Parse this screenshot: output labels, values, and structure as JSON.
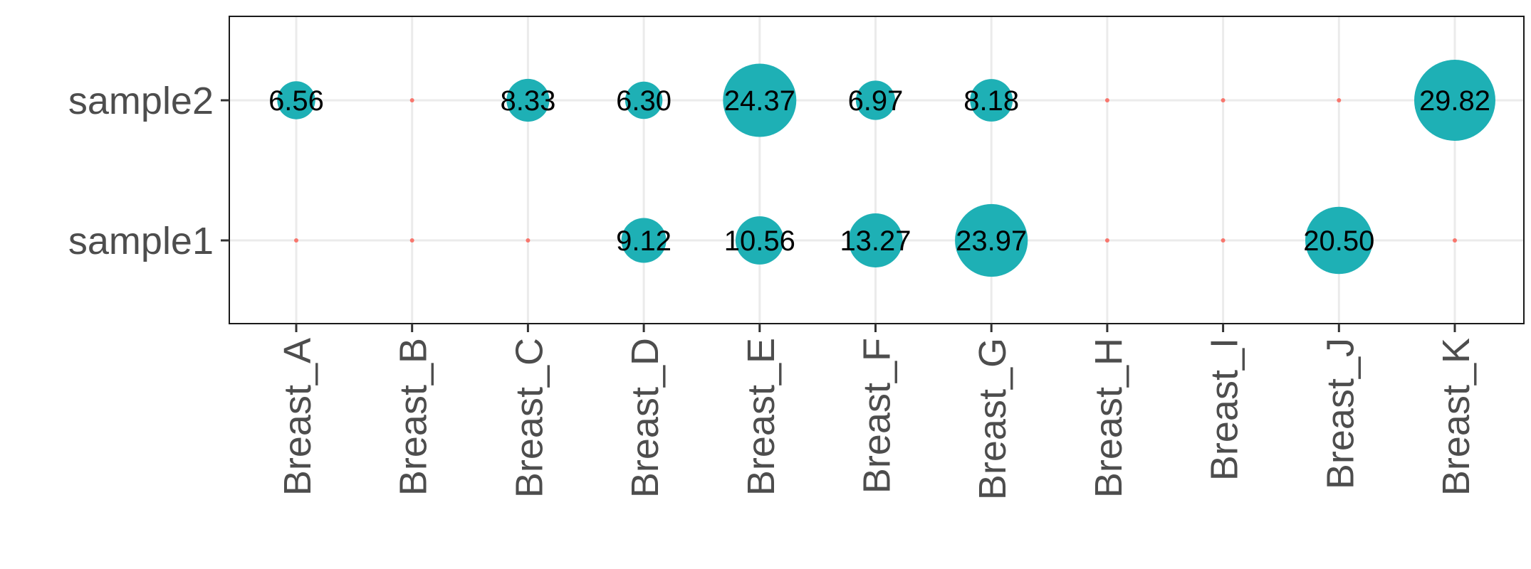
{
  "chart_data": {
    "type": "scatter",
    "subtype": "bubble",
    "x_categories": [
      "Breast_A",
      "Breast_B",
      "Breast_C",
      "Breast_D",
      "Breast_E",
      "Breast_F",
      "Breast_G",
      "Breast_H",
      "Breast_I",
      "Breast_J",
      "Breast_K"
    ],
    "y_categories": [
      "sample1",
      "sample2"
    ],
    "series": [
      {
        "name": "sample2",
        "values": [
          6.56,
          0,
          8.33,
          6.3,
          24.37,
          6.97,
          8.18,
          0,
          0,
          0,
          29.82
        ],
        "labels": [
          "6.56",
          null,
          "8.33",
          "6.30",
          "24.37",
          "6.97",
          "8.18",
          null,
          null,
          null,
          "29.82"
        ]
      },
      {
        "name": "sample1",
        "values": [
          0,
          0,
          0,
          9.12,
          10.56,
          13.27,
          23.97,
          0,
          0,
          20.5,
          0
        ],
        "labels": [
          null,
          null,
          null,
          "9.12",
          "10.56",
          "13.27",
          "23.97",
          null,
          null,
          "20.50",
          null
        ]
      }
    ],
    "max_value": 29.82,
    "grid": true,
    "legend": "none",
    "colors": {
      "nonzero": "#1eb0b5",
      "zero": "#f8766d",
      "grid": "#ebebeb",
      "border": "#1a1a1a",
      "axis_text": "#4d4d4d",
      "label_text": "#000000"
    },
    "title": "",
    "xlabel": "",
    "ylabel": ""
  }
}
